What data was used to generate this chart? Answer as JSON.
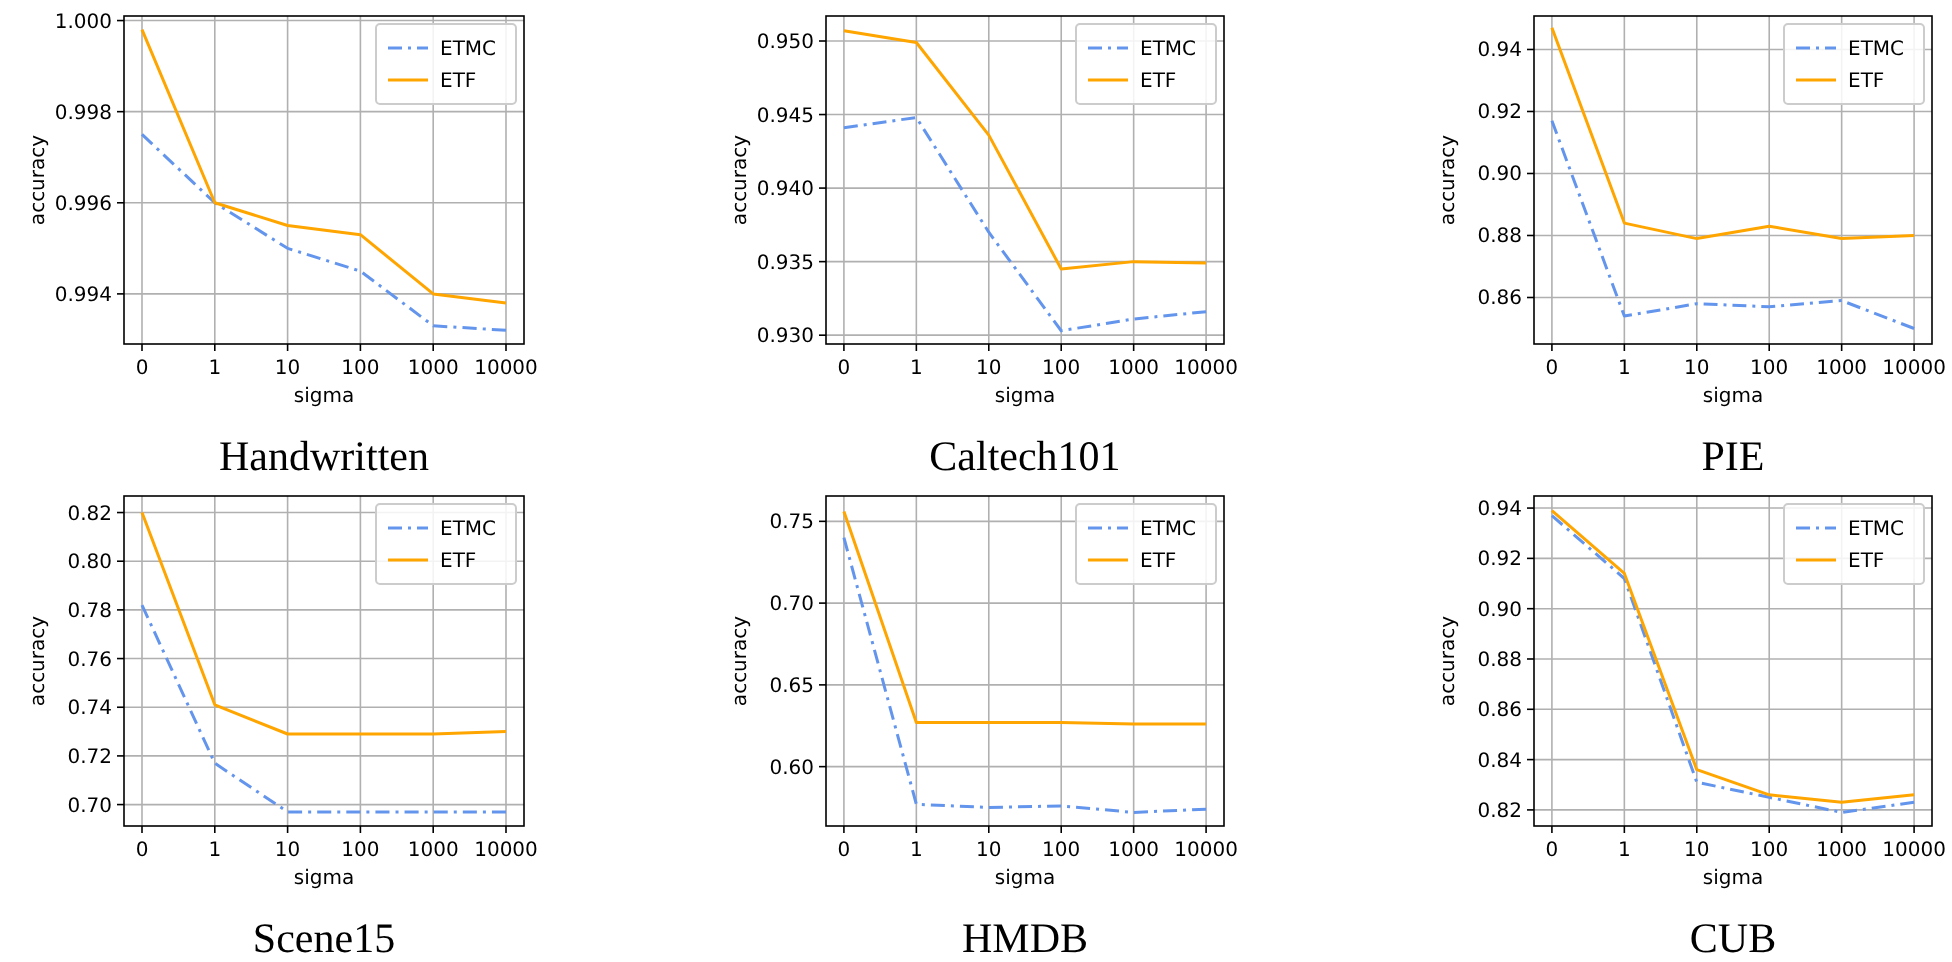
{
  "chart_data": [
    {
      "type": "line",
      "title": "Handwritten",
      "xlabel": "sigma",
      "ylabel": "accuracy",
      "categories": [
        "0",
        "1",
        "10",
        "100",
        "1000",
        "10000"
      ],
      "ylim": [
        0.9929,
        1.0001
      ],
      "yticks": [
        {
          "value": 0.994,
          "label": "0.994"
        },
        {
          "value": 0.996,
          "label": "0.996"
        },
        {
          "value": 0.998,
          "label": "0.998"
        },
        {
          "value": 1.0,
          "label": "1.000"
        }
      ],
      "grid": true,
      "legend": "top right",
      "series": [
        {
          "name": "ETMC",
          "color": "#6495ed",
          "line_style": "dashed",
          "values": [
            0.9975,
            0.996,
            0.995,
            0.9945,
            0.9933,
            0.9932
          ]
        },
        {
          "name": "ETF",
          "color": "#ffa500",
          "line_style": "solid",
          "values": [
            0.9998,
            0.996,
            0.9955,
            0.9953,
            0.994,
            0.9938
          ]
        }
      ]
    },
    {
      "type": "line",
      "title": "Caltech101",
      "xlabel": "sigma",
      "ylabel": "accuracy",
      "categories": [
        "0",
        "1",
        "10",
        "100",
        "1000",
        "10000"
      ],
      "ylim": [
        0.9294,
        0.9517
      ],
      "yticks": [
        {
          "value": 0.93,
          "label": "0.930"
        },
        0.935,
        {
          "value": 0.94,
          "label": "0.940"
        },
        0.945,
        {
          "value": 0.95,
          "label": "0.950"
        }
      ],
      "grid": true,
      "legend": "top right",
      "series": [
        {
          "name": "ETMC",
          "color": "#6495ed",
          "line_style": "dashed",
          "values": [
            0.9441,
            0.9448,
            0.937,
            0.9303,
            0.9311,
            0.9316
          ]
        },
        {
          "name": "ETF",
          "color": "#ffa500",
          "line_style": "solid",
          "values": [
            0.9507,
            0.9499,
            0.9436,
            0.9345,
            0.935,
            0.9349
          ]
        }
      ]
    },
    {
      "type": "line",
      "title": "PIE",
      "xlabel": "sigma",
      "ylabel": "accuracy",
      "categories": [
        "0",
        "1",
        "10",
        "100",
        "1000",
        "10000"
      ],
      "ylim": [
        0.845,
        0.9508
      ],
      "yticks": [
        0.86,
        0.88,
        {
          "value": 0.9,
          "label": "0.90"
        },
        0.92,
        0.94
      ],
      "grid": true,
      "legend": "top right",
      "series": [
        {
          "name": "ETMC",
          "color": "#6495ed",
          "line_style": "dashed",
          "values": [
            0.917,
            0.854,
            0.858,
            0.857,
            0.859,
            0.85
          ]
        },
        {
          "name": "ETF",
          "color": "#ffa500",
          "line_style": "solid",
          "values": [
            0.947,
            0.884,
            0.879,
            0.883,
            0.879,
            0.88
          ]
        }
      ]
    },
    {
      "type": "line",
      "title": "Scene15",
      "xlabel": "sigma",
      "ylabel": "accuracy",
      "categories": [
        "0",
        "1",
        "10",
        "100",
        "1000",
        "10000"
      ],
      "ylim": [
        0.6912,
        0.8268
      ],
      "yticks": [
        {
          "value": 0.7,
          "label": "0.70"
        },
        0.72,
        0.74,
        0.76,
        0.78,
        {
          "value": 0.8,
          "label": "0.80"
        },
        0.82
      ],
      "grid": true,
      "legend": "top right",
      "series": [
        {
          "name": "ETMC",
          "color": "#6495ed",
          "line_style": "dashed",
          "values": [
            0.782,
            0.717,
            0.697,
            0.697,
            0.697,
            0.697
          ]
        },
        {
          "name": "ETF",
          "color": "#ffa500",
          "line_style": "solid",
          "values": [
            0.82,
            0.741,
            0.729,
            0.729,
            0.729,
            0.73
          ]
        }
      ]
    },
    {
      "type": "line",
      "title": "HMDB",
      "xlabel": "sigma",
      "ylabel": "accuracy",
      "categories": [
        "0",
        "1",
        "10",
        "100",
        "1000",
        "10000"
      ],
      "ylim": [
        0.5637,
        0.7655
      ],
      "yticks": [
        {
          "value": 0.6,
          "label": "0.60"
        },
        0.65,
        {
          "value": 0.7,
          "label": "0.70"
        },
        0.75
      ],
      "grid": true,
      "legend": "top right",
      "series": [
        {
          "name": "ETMC",
          "color": "#6495ed",
          "line_style": "dashed",
          "values": [
            0.74,
            0.577,
            0.575,
            0.576,
            0.572,
            0.574
          ]
        },
        {
          "name": "ETF",
          "color": "#ffa500",
          "line_style": "solid",
          "values": [
            0.756,
            0.627,
            0.627,
            0.627,
            0.626,
            0.626
          ]
        }
      ]
    },
    {
      "type": "line",
      "title": "CUB",
      "xlabel": "sigma",
      "ylabel": "accuracy",
      "categories": [
        "0",
        "1",
        "10",
        "100",
        "1000",
        "10000"
      ],
      "ylim": [
        0.8136,
        0.9448
      ],
      "yticks": [
        0.82,
        0.84,
        0.86,
        0.88,
        {
          "value": 0.9,
          "label": "0.90"
        },
        0.92,
        0.94
      ],
      "grid": true,
      "legend": "top right",
      "series": [
        {
          "name": "ETMC",
          "color": "#6495ed",
          "line_style": "dashed",
          "values": [
            0.937,
            0.912,
            0.831,
            0.825,
            0.819,
            0.823
          ]
        },
        {
          "name": "ETF",
          "color": "#ffa500",
          "line_style": "solid",
          "values": [
            0.939,
            0.914,
            0.836,
            0.826,
            0.823,
            0.826
          ]
        }
      ]
    }
  ]
}
